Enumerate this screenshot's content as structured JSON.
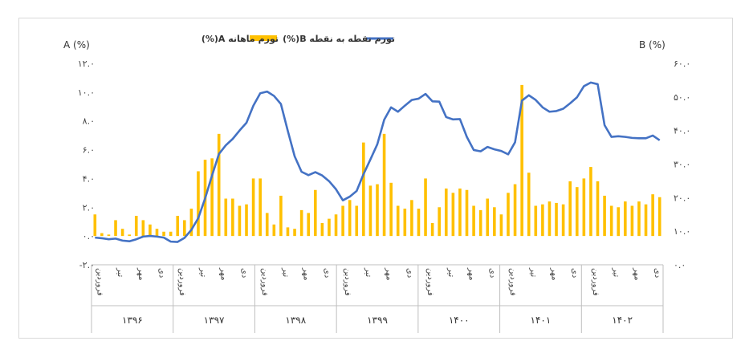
{
  "chart_data": {
    "type": "bar+line",
    "title": "",
    "legend": {
      "bar_label": "تورم ماهانه A(%)",
      "line_label": "تورم نقطه به نقطه B(%)",
      "placement": "top-center"
    },
    "left_axis": {
      "label": "A (%)",
      "ylim": [
        -2,
        12
      ],
      "ticks": [
        12,
        10,
        8,
        6,
        4,
        2,
        0,
        -2
      ],
      "tick_labels": [
        "۱۲.۰",
        "۱۰.۰",
        "۸.۰",
        "۶.۰",
        "۴.۰",
        "۲.۰",
        "۰.۰",
        "-۲.۰"
      ]
    },
    "right_axis": {
      "label": "B (%)",
      "ylim": [
        0,
        60
      ],
      "ticks": [
        60,
        50,
        40,
        30,
        20,
        10,
        0
      ],
      "tick_labels": [
        "۶۰.۰",
        "۵۰.۰",
        "۴۰.۰",
        "۳۰.۰",
        "۲۰.۰",
        "۱۰.۰",
        "۰.۰"
      ]
    },
    "month_labels": [
      "فروردین",
      "تیر",
      "مهر",
      "دی"
    ],
    "years": [
      "۱۳۹۶",
      "۱۳۹۷",
      "۱۳۹۸",
      "۱۳۹۹",
      "۱۴۰۰",
      "۱۴۰۱",
      "۱۴۰۲"
    ],
    "months_per_year": 12,
    "series": [
      {
        "name": "تورم ماهانه A(%)",
        "axis": "left",
        "color": "#FFC000",
        "values": [
          1.5,
          0.2,
          0.1,
          1.1,
          0.5,
          0.1,
          1.4,
          1.1,
          0.8,
          0.5,
          0.3,
          0.3,
          1.4,
          1.1,
          1.9,
          4.5,
          5.3,
          5.4,
          7.1,
          2.6,
          2.6,
          2.1,
          2.2,
          4.0,
          4.0,
          1.6,
          0.8,
          2.8,
          0.6,
          0.5,
          1.8,
          1.6,
          3.2,
          0.9,
          1.2,
          1.5,
          2.1,
          2.5,
          2.1,
          6.5,
          3.5,
          3.6,
          7.1,
          3.7,
          2.1,
          1.9,
          2.5,
          1.9,
          4.0,
          0.9,
          2.0,
          3.3,
          3.0,
          3.3,
          3.2,
          2.1,
          1.8,
          2.6,
          2.0,
          1.5,
          3.0,
          3.6,
          10.5,
          4.4,
          2.1,
          2.2,
          2.4,
          2.3,
          2.2,
          3.8,
          3.4,
          4.0,
          4.8,
          3.8,
          2.8,
          2.1,
          2.0,
          2.4,
          2.1,
          2.4,
          2.2,
          2.9,
          2.7
        ]
      },
      {
        "name": "تورم نقطه به نقطه B(%)",
        "axis": "right",
        "color": "#4472C4",
        "values": [
          8.1,
          7.9,
          7.6,
          7.8,
          7.2,
          7.0,
          7.6,
          8.4,
          8.6,
          8.4,
          8.1,
          6.9,
          6.8,
          8.0,
          10.4,
          13.9,
          19.8,
          26.6,
          33.0,
          35.6,
          37.5,
          40.0,
          42.3,
          47.4,
          51.1,
          51.6,
          50.3,
          47.9,
          39.9,
          32.3,
          27.7,
          26.7,
          27.6,
          26.6,
          24.9,
          22.5,
          19.2,
          20.3,
          22.0,
          27.0,
          31.4,
          35.9,
          43.2,
          46.9,
          45.6,
          47.4,
          49.1,
          49.5,
          50.9,
          48.7,
          48.6,
          44.0,
          43.3,
          43.4,
          38.1,
          34.2,
          33.8,
          35.1,
          34.4,
          33.9,
          32.9,
          36.5,
          48.9,
          50.5,
          49.1,
          46.9,
          45.6,
          45.8,
          46.5,
          48.1,
          49.9,
          53.2,
          54.3,
          53.8,
          41.6,
          38.1,
          38.3,
          38.1,
          37.8,
          37.7,
          37.7,
          38.5,
          37.1
        ]
      }
    ]
  }
}
